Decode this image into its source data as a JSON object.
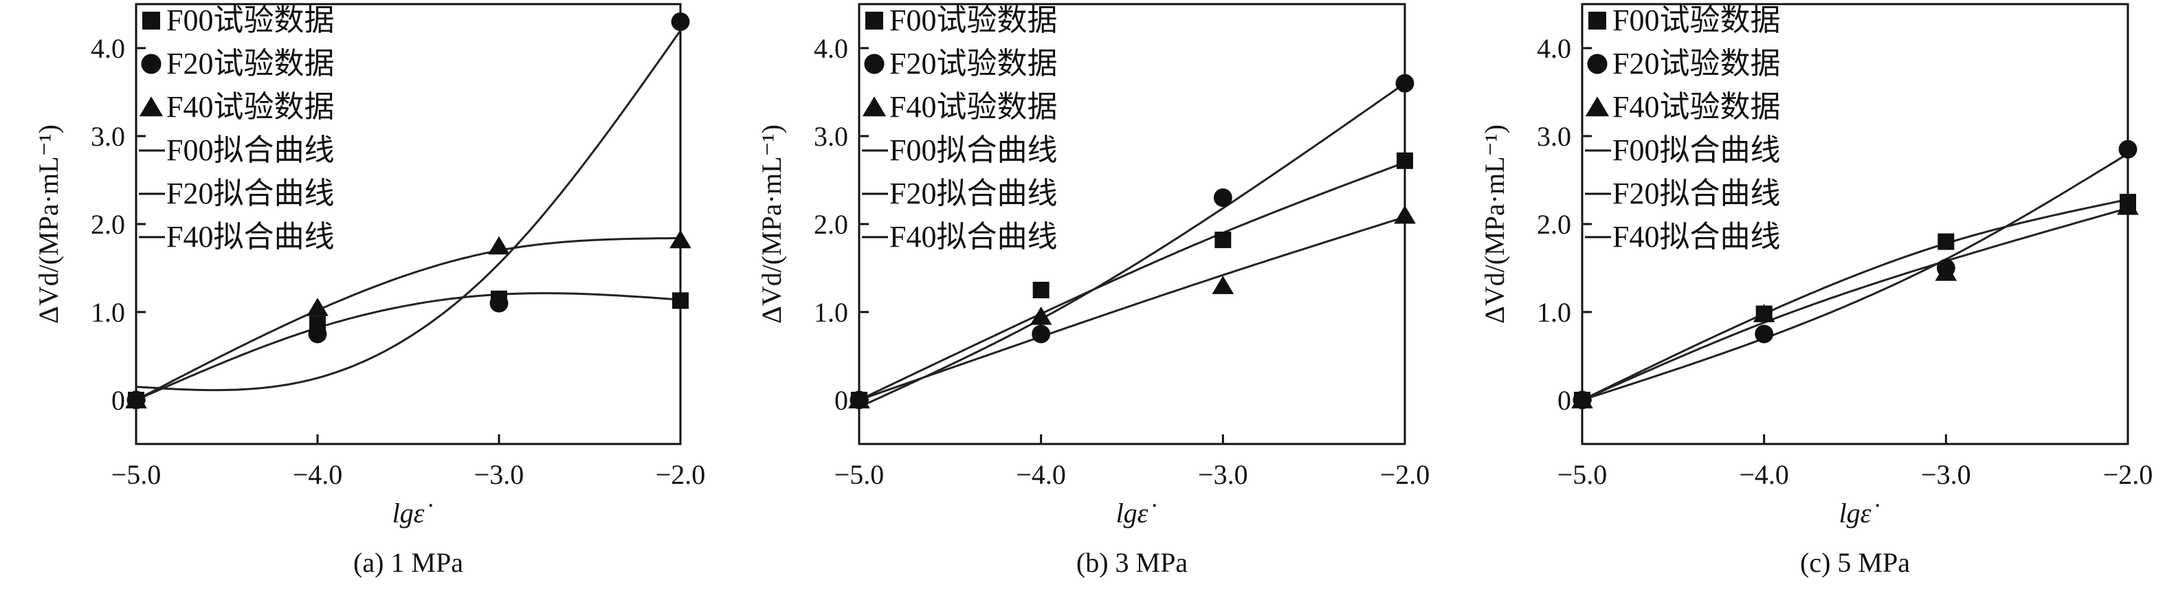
{
  "figure": {
    "legend_entries": [
      "F00试验数据",
      "F20试验数据",
      "F40试验数据",
      "F00拟合曲线",
      "F20拟合曲线",
      "F40拟合曲线"
    ]
  },
  "chart_data": [
    {
      "type": "scatter",
      "caption": "(a) 1 MPa",
      "xlabel": "lgε̇",
      "ylabel": "ΔVd/(MPa·mL⁻¹)",
      "xlim": [
        -5.0,
        -2.0
      ],
      "ylim": [
        -0.5,
        4.5
      ],
      "xticks": [
        -5.0,
        -4.0,
        -3.0,
        -2.0
      ],
      "xtick_labels": [
        "−5.0",
        "−4.0",
        "−3.0",
        "−2.0"
      ],
      "yticks": [
        0,
        1.0,
        2.0,
        3.0,
        4.0
      ],
      "ytick_labels": [
        "0",
        "1.0",
        "2.0",
        "3.0",
        "4.0"
      ],
      "grid": false,
      "legend_position": "top-left",
      "series": [
        {
          "name": "F00试验数据",
          "marker": "square",
          "x": [
            -5.0,
            -4.0,
            -3.0,
            -2.0
          ],
          "y": [
            0,
            0.86,
            1.15,
            1.13
          ]
        },
        {
          "name": "F20试验数据",
          "marker": "circle",
          "x": [
            -5.0,
            -4.0,
            -3.0,
            -2.0
          ],
          "y": [
            0,
            0.75,
            1.1,
            4.3
          ]
        },
        {
          "name": "F40试验数据",
          "marker": "triangle",
          "x": [
            -5.0,
            -4.0,
            -3.0,
            -2.0
          ],
          "y": [
            0,
            1.05,
            1.75,
            1.82
          ]
        }
      ],
      "fits": [
        {
          "name": "F00拟合曲线",
          "x": [
            -5.0,
            -4.0,
            -3.0,
            -2.0
          ],
          "y": [
            0,
            0.82,
            1.2,
            1.14
          ]
        },
        {
          "name": "F20拟合曲线",
          "x": [
            -5.0,
            -4.0,
            -3.0,
            -2.0
          ],
          "y": [
            0.15,
            0.25,
            1.55,
            4.2
          ]
        },
        {
          "name": "F40拟合曲线",
          "x": [
            -5.0,
            -4.0,
            -3.0,
            -2.0
          ],
          "y": [
            0,
            1.02,
            1.7,
            1.84
          ]
        }
      ]
    },
    {
      "type": "scatter",
      "caption": "(b) 3 MPa",
      "xlabel": "lgε̇",
      "ylabel": "ΔVd/(MPa·mL⁻¹)",
      "xlim": [
        -5.0,
        -2.0
      ],
      "ylim": [
        -0.5,
        4.5
      ],
      "xticks": [
        -5.0,
        -4.0,
        -3.0,
        -2.0
      ],
      "xtick_labels": [
        "−5.0",
        "−4.0",
        "−3.0",
        "−2.0"
      ],
      "yticks": [
        0,
        1.0,
        2.0,
        3.0,
        4.0
      ],
      "ytick_labels": [
        "0",
        "1.0",
        "2.0",
        "3.0",
        "4.0"
      ],
      "grid": false,
      "legend_position": "top-left",
      "series": [
        {
          "name": "F00试验数据",
          "marker": "square",
          "x": [
            -5.0,
            -4.0,
            -3.0,
            -2.0
          ],
          "y": [
            0,
            1.25,
            1.82,
            2.72
          ]
        },
        {
          "name": "F20试验数据",
          "marker": "circle",
          "x": [
            -5.0,
            -4.0,
            -3.0,
            -2.0
          ],
          "y": [
            0,
            0.75,
            2.3,
            3.6
          ]
        },
        {
          "name": "F40试验数据",
          "marker": "triangle",
          "x": [
            -5.0,
            -4.0,
            -3.0,
            -2.0
          ],
          "y": [
            0,
            0.95,
            1.3,
            2.1
          ]
        }
      ],
      "fits": [
        {
          "name": "F00拟合曲线",
          "x": [
            -5.0,
            -4.0,
            -3.0,
            -2.0
          ],
          "y": [
            0,
            0.98,
            1.9,
            2.7
          ]
        },
        {
          "name": "F20拟合曲线",
          "x": [
            -5.0,
            -4.0,
            -3.0,
            -2.0
          ],
          "y": [
            -0.08,
            0.92,
            2.18,
            3.6
          ]
        },
        {
          "name": "F40拟合曲线",
          "x": [
            -5.0,
            -4.0,
            -3.0,
            -2.0
          ],
          "y": [
            0,
            0.72,
            1.42,
            2.08
          ]
        }
      ]
    },
    {
      "type": "scatter",
      "caption": "(c) 5 MPa",
      "xlabel": "lgε̇",
      "ylabel": "ΔVd/(MPa·mL⁻¹)",
      "xlim": [
        -5.0,
        -2.0
      ],
      "ylim": [
        -0.5,
        4.5
      ],
      "xticks": [
        -5.0,
        -4.0,
        -3.0,
        -2.0
      ],
      "xtick_labels": [
        "−5.0",
        "−4.0",
        "−3.0",
        "−2.0"
      ],
      "yticks": [
        0,
        1.0,
        2.0,
        3.0,
        4.0
      ],
      "ytick_labels": [
        "0",
        "1.0",
        "2.0",
        "3.0",
        "4.0"
      ],
      "grid": false,
      "legend_position": "top-left",
      "series": [
        {
          "name": "F00试验数据",
          "marker": "square",
          "x": [
            -5.0,
            -4.0,
            -3.0,
            -2.0
          ],
          "y": [
            0,
            0.98,
            1.8,
            2.25
          ]
        },
        {
          "name": "F20试验数据",
          "marker": "circle",
          "x": [
            -5.0,
            -4.0,
            -3.0,
            -2.0
          ],
          "y": [
            0,
            0.75,
            1.5,
            2.85
          ]
        },
        {
          "name": "F40试验数据",
          "marker": "triangle",
          "x": [
            -5.0,
            -4.0,
            -3.0,
            -2.0
          ],
          "y": [
            0,
            0.98,
            1.45,
            2.2
          ]
        }
      ],
      "fits": [
        {
          "name": "F00拟合曲线",
          "x": [
            -5.0,
            -4.0,
            -3.0,
            -2.0
          ],
          "y": [
            0,
            0.98,
            1.78,
            2.28
          ]
        },
        {
          "name": "F20拟合曲线",
          "x": [
            -5.0,
            -4.0,
            -3.0,
            -2.0
          ],
          "y": [
            0,
            0.7,
            1.6,
            2.8
          ]
        },
        {
          "name": "F40拟合曲线",
          "x": [
            -5.0,
            -4.0,
            -3.0,
            -2.0
          ],
          "y": [
            0,
            0.88,
            1.58,
            2.18
          ]
        }
      ]
    }
  ]
}
